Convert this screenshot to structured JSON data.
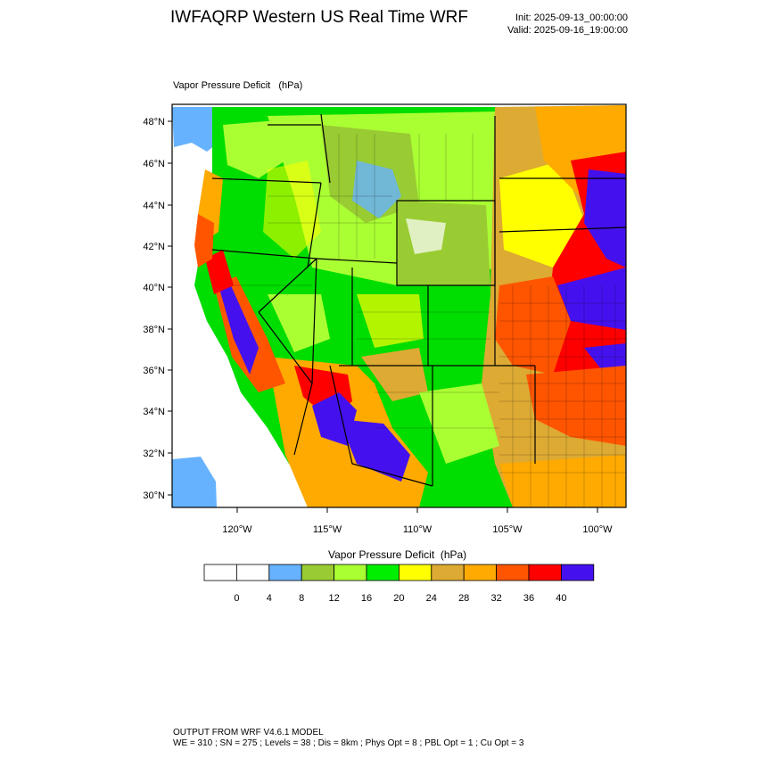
{
  "header": {
    "title": "IWFAQRP Western US Real Time WRF",
    "init": "Init: 2025-09-13_00:00:00",
    "valid": "Valid: 2025-09-16_19:00:00"
  },
  "map": {
    "label": "Vapor Pressure Deficit   (hPa)",
    "lat_labels": [
      "48°N",
      "46°N",
      "44°N",
      "42°N",
      "40°N",
      "38°N",
      "36°N",
      "34°N",
      "32°N",
      "30°N"
    ],
    "lon_labels": [
      "120°W",
      "115°W",
      "110°W",
      "105°W",
      "100°W"
    ],
    "field": "Vapor Pressure Deficit",
    "units": "hPa"
  },
  "colorbar": {
    "title": "Vapor Pressure Deficit  (hPa)",
    "tick_labels": [
      "0",
      "4",
      "8",
      "12",
      "16",
      "20",
      "24",
      "28",
      "32",
      "36",
      "40"
    ],
    "colors": [
      "#ffffff",
      "#ffffff",
      "#66b2ff",
      "#99cc33",
      "#aaff33",
      "#00ee00",
      "#ffff00",
      "#ddaa33",
      "#ffaa00",
      "#ff5500",
      "#ff0000",
      "#4411ee"
    ]
  },
  "footer": {
    "line1": "OUTPUT FROM WRF V4.6.1 MODEL",
    "line2": "WE = 310 ; SN = 275 ; Levels = 38 ; Dis = 8km ; Phys Opt = 8 ; PBL Opt = 1 ; Cu Opt = 3"
  }
}
